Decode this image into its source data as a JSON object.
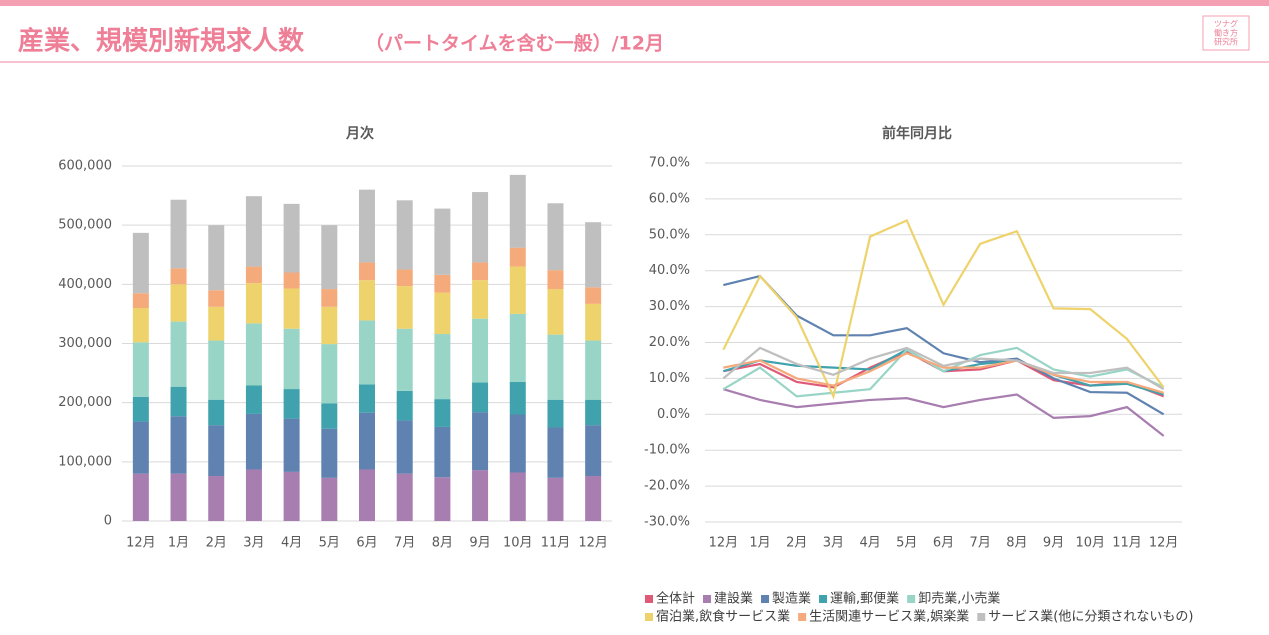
{
  "header": {
    "title": "産業、規模別新規求人数",
    "subtitle": "（パートタイムを含む一般）/12月",
    "logo": [
      "ツナグ",
      "働き方",
      "研究所"
    ]
  },
  "chart_data": [
    {
      "type": "stacked_bar",
      "title": "月次",
      "categories": [
        "12月",
        "1月",
        "2月",
        "3月",
        "4月",
        "5月",
        "6月",
        "7月",
        "8月",
        "9月",
        "10月",
        "11月",
        "12月"
      ],
      "ylim": [
        0,
        600000
      ],
      "yticks": [
        0,
        {
          "value": 100000,
          "label": "100,000"
        },
        {
          "value": 200000,
          "label": "200,000"
        },
        {
          "value": 300000,
          "label": "300,000"
        },
        {
          "value": 400000,
          "label": "400,000"
        },
        {
          "value": 500000,
          "label": "500,000"
        },
        {
          "value": 600000,
          "label": "600,000"
        }
      ],
      "grid": true,
      "series": [
        {
          "color": "#a87db0",
          "values": [
            80000,
            80000,
            76000,
            87000,
            83000,
            73000,
            87000,
            80000,
            74000,
            86000,
            82000,
            73000,
            76000
          ]
        },
        {
          "color": "#5f82b0",
          "values": [
            88000,
            97000,
            86000,
            94000,
            90000,
            83000,
            96000,
            90000,
            85000,
            98000,
            98000,
            85000,
            86000
          ]
        },
        {
          "color": "#3fa2ad",
          "values": [
            42000,
            50000,
            43000,
            48000,
            50000,
            43000,
            48000,
            50000,
            47000,
            50000,
            55000,
            47000,
            43000
          ]
        },
        {
          "color": "#98d5c7",
          "values": [
            92000,
            110000,
            100000,
            105000,
            102000,
            100000,
            108000,
            105000,
            110000,
            108000,
            115000,
            110000,
            100000
          ]
        },
        {
          "color": "#eed36c",
          "values": [
            58000,
            63000,
            57000,
            68000,
            68000,
            63000,
            68000,
            72000,
            70000,
            65000,
            80000,
            77000,
            62000
          ]
        },
        {
          "color": "#f5aa7c",
          "values": [
            25000,
            27000,
            28000,
            28000,
            27000,
            30000,
            30000,
            28000,
            30000,
            30000,
            32000,
            32000,
            28000
          ]
        },
        {
          "color": "#bfbfbf",
          "values": [
            102000,
            116000,
            110000,
            119000,
            116000,
            108000,
            123000,
            117000,
            112000,
            119000,
            123000,
            113000,
            110000
          ]
        }
      ]
    },
    {
      "type": "line",
      "title": "前年同月比",
      "categories": [
        "12月",
        "1月",
        "2月",
        "3月",
        "4月",
        "5月",
        "6月",
        "7月",
        "8月",
        "9月",
        "10月",
        "11月",
        "12月"
      ],
      "ylim": [
        -30,
        70
      ],
      "yticks": [
        {
          "value": -30,
          "label": "-30.0%"
        },
        {
          "value": -20,
          "label": "-20.0%"
        },
        {
          "value": -10,
          "label": "-10.0%"
        },
        {
          "value": 0,
          "label": "0.0%"
        },
        {
          "value": 10,
          "label": "10.0%"
        },
        {
          "value": 20,
          "label": "20.0%"
        },
        {
          "value": 30,
          "label": "30.0%"
        },
        {
          "value": 40,
          "label": "40.0%"
        },
        {
          "value": 50,
          "label": "50.0%"
        },
        {
          "value": 60,
          "label": "60.0%"
        },
        {
          "value": 70,
          "label": "70.0%"
        }
      ],
      "grid": true,
      "legend": "bottom",
      "series": [
        {
          "name": "全体計",
          "color": "#e05a78",
          "values": [
            12,
            14,
            9,
            7.5,
            13,
            17.5,
            12,
            12.5,
            15,
            9.5,
            8,
            9,
            5
          ]
        },
        {
          "name": "建設業",
          "color": "#a87db0",
          "values": [
            7,
            4,
            2,
            3,
            4,
            4.5,
            2,
            4,
            5.5,
            -1,
            -0.5,
            2,
            -6
          ]
        },
        {
          "name": "製造業",
          "color": "#5f82b0",
          "values": [
            36,
            38.5,
            27.5,
            22,
            22,
            24,
            17,
            14.5,
            15.5,
            10,
            6.2,
            6,
            0
          ]
        },
        {
          "name": "運輸,郵便業",
          "color": "#3fa2ad",
          "values": [
            12,
            15,
            13.5,
            13,
            12.5,
            18,
            12,
            14,
            15,
            11,
            8,
            8.5,
            5.5
          ]
        },
        {
          "name": "卸売業,小売業",
          "color": "#98d5c7",
          "values": [
            7,
            13,
            5,
            6,
            7,
            18,
            12,
            16.5,
            18.5,
            12.5,
            10.5,
            12.5,
            7.5
          ]
        },
        {
          "name": "宿泊業,飲食サービス業",
          "color": "#eed36c",
          "values": [
            18,
            38.5,
            27,
            5,
            49.5,
            54,
            30.5,
            47.5,
            51,
            29.5,
            29.3,
            21,
            7.5
          ]
        },
        {
          "name": "生活関連サービス業,娯楽業",
          "color": "#f5aa7c",
          "values": [
            13,
            15,
            10,
            8,
            12,
            17,
            13,
            13,
            15,
            11,
            9,
            9,
            6
          ]
        },
        {
          "name": "サービス業(他に分類されないもの)",
          "color": "#bfbfbf",
          "values": [
            10,
            18.5,
            14,
            11,
            15.5,
            18.5,
            13.5,
            15.5,
            15,
            11.5,
            11.5,
            13,
            7
          ]
        }
      ]
    }
  ]
}
